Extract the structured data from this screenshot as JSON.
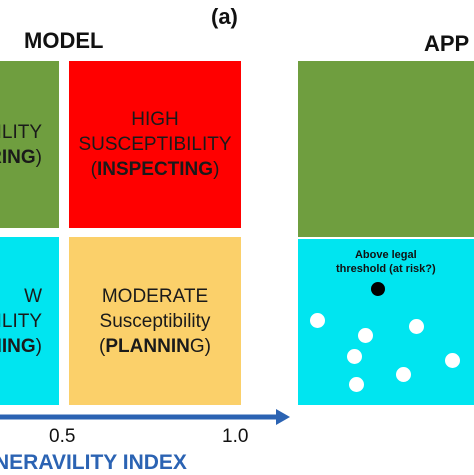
{
  "panel_label": "(a)",
  "headings": {
    "model": "MODEL",
    "application": "APP"
  },
  "quadrants": {
    "top_left": {
      "line1": "ILITY",
      "line2_bold": "RING",
      "line2_tail": ")",
      "color": "#6f9e3f"
    },
    "top_right": {
      "line1": "HIGH",
      "line2": "SUSCEPTIBILITY",
      "line3_open": "(",
      "line3_bold": "INSPECTING",
      "line3_close": ")",
      "color": "#ff0000"
    },
    "bottom_left": {
      "line1": "W",
      "line2": "ILITY",
      "line3_bold": "NING",
      "line3_tail": ")",
      "color": "#00e5f0"
    },
    "bottom_right": {
      "line1": "MODERATE",
      "line2": "Susceptibility",
      "line3_open": "(",
      "line3_bold": "PLANNIN",
      "line3_tail": "G)",
      "color": "#fbd06a"
    }
  },
  "application_panel": {
    "top_color": "#6f9e3f",
    "bottom_color": "#00e5f0",
    "note": {
      "line1": "Above legal",
      "line2": "threshold (at risk?)"
    }
  },
  "axis": {
    "ticks": [
      "0.5",
      "1.0"
    ],
    "title": "NERAVILITY INDEX",
    "arrow_color": "#2b63b3"
  }
}
